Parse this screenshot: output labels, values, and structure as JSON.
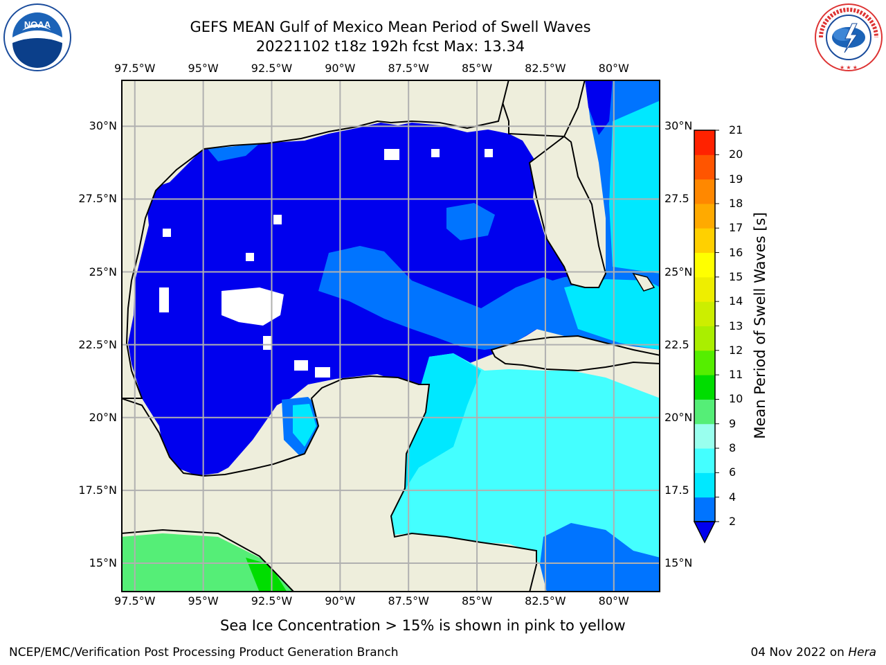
{
  "header": {
    "title_line1": "GEFS MEAN Gulf of Mexico Mean Period of Swell Waves",
    "title_line2": "20221102 t18z 192h fcst   Max: 13.34"
  },
  "logos": {
    "left_text": "NOAA",
    "left_ring_text": "NATIONAL OCEANIC AND ATMOSPHERIC ADMINISTRATION · U.S. DEPARTMENT OF COMMERCE",
    "right_ring_text": "NATIONAL WEATHER SERVICE"
  },
  "map": {
    "lon_ticks": [
      "97.5°W",
      "95°W",
      "92.5°W",
      "90°W",
      "87.5°W",
      "85°W",
      "82.5°W",
      "80°W"
    ],
    "lat_ticks_left": [
      "30°N",
      "27.5°N",
      "25°N",
      "22.5°N",
      "20°N",
      "17.5°N",
      "15°N"
    ],
    "lat_ticks_right": [
      "30°N",
      "27.5",
      "25°N",
      "22.5",
      "20°N",
      "17.5",
      "15°N"
    ],
    "lon_values": [
      -97.5,
      -95,
      -92.5,
      -90,
      -87.5,
      -85,
      -82.5,
      -80
    ],
    "lat_values": [
      30,
      27.5,
      25,
      22.5,
      20,
      17.5,
      15
    ],
    "extent": {
      "lon_min": -98,
      "lon_max": -78.3,
      "lat_min": 14.0,
      "lat_max": 31.6
    },
    "colors": {
      "land": "#eeeedc",
      "grid": "#b0b0b0",
      "coast": "#000000"
    }
  },
  "colorbar": {
    "label": "Mean Period of Swell Waves [s]",
    "tick_labels": [
      "2",
      "4",
      "6",
      "8",
      "9",
      "10",
      "11",
      "12",
      "13",
      "14",
      "15",
      "16",
      "17",
      "18",
      "19",
      "20",
      "21"
    ],
    "bins": [
      {
        "lo": 2,
        "hi": 4,
        "color": "#0074ff"
      },
      {
        "lo": 4,
        "hi": 6,
        "color": "#00e8ff"
      },
      {
        "lo": 6,
        "hi": 8,
        "color": "#44ffff"
      },
      {
        "lo": 8,
        "hi": 9,
        "color": "#99ffee"
      },
      {
        "lo": 9,
        "hi": 10,
        "color": "#55ee77"
      },
      {
        "lo": 10,
        "hi": 11,
        "color": "#00dd00"
      },
      {
        "lo": 11,
        "hi": 12,
        "color": "#55ee00"
      },
      {
        "lo": 12,
        "hi": 13,
        "color": "#aaee00"
      },
      {
        "lo": 13,
        "hi": 14,
        "color": "#ccee00"
      },
      {
        "lo": 14,
        "hi": 15,
        "color": "#eeee00"
      },
      {
        "lo": 15,
        "hi": 16,
        "color": "#ffff00"
      },
      {
        "lo": 16,
        "hi": 17,
        "color": "#ffd000"
      },
      {
        "lo": 17,
        "hi": 18,
        "color": "#ffaa00"
      },
      {
        "lo": 18,
        "hi": 19,
        "color": "#ff8800"
      },
      {
        "lo": 19,
        "hi": 20,
        "color": "#ff5500"
      },
      {
        "lo": 20,
        "hi": 21,
        "color": "#ff2200"
      }
    ],
    "under_color": "#0000ee"
  },
  "caption": "Sea Ice Concentration > 15% is shown in pink to yellow",
  "footer": {
    "left": "NCEP/EMC/Verification Post Processing Product Generation Branch",
    "right_date": "04 Nov 2022 on ",
    "right_machine": "Hera"
  }
}
